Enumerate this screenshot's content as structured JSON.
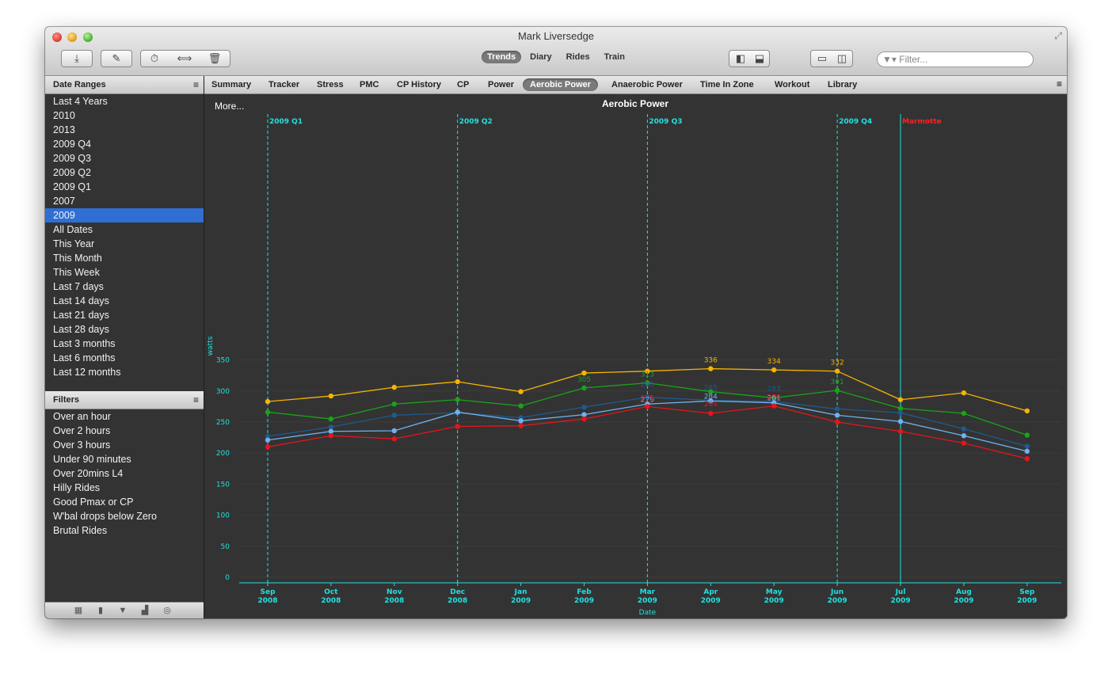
{
  "window": {
    "title": "Mark Liversedge"
  },
  "toolbar": {
    "nav": [
      "Trends",
      "Diary",
      "Rides",
      "Train"
    ],
    "active_nav": "Trends",
    "filter_placeholder": "Filter...",
    "icons": [
      "download-icon",
      "edit-icon",
      "stopwatch-icon",
      "split-icon",
      "trash-icon",
      "sidebar-icon",
      "bottom-panel-icon",
      "single-view-icon",
      "tiled-view-icon"
    ]
  },
  "sidebar": {
    "date_ranges_title": "Date Ranges",
    "date_ranges": [
      "Last 4 Years",
      "2010",
      "2013",
      "2009 Q4",
      "2009 Q3",
      "2009 Q2",
      "2009 Q1",
      "2007",
      "2009",
      "All Dates",
      "This Year",
      "This Month",
      "This Week",
      "Last 7 days",
      "Last 14 days",
      "Last 21 days",
      "Last 28 days",
      "Last 3 months",
      "Last 6 months",
      "Last 12 months"
    ],
    "selected_range": "2009",
    "filters_title": "Filters",
    "filters": [
      "Over an hour",
      "Over 2 hours",
      "Over 3 hours",
      "Under 90 minutes",
      "Over 20mins L4",
      "Hilly Rides",
      "Good Pmax or CP",
      "W'bal drops below Zero",
      "Brutal Rides"
    ]
  },
  "tabs": [
    "Summary",
    "Tracker",
    "Stress",
    "PMC",
    "CP History",
    "CP",
    "Power",
    "Aerobic Power",
    "Anaerobic Power",
    "Time In Zone",
    "Workout",
    "Library"
  ],
  "active_tab": "Aerobic Power",
  "more_label": "More...",
  "chart_data": {
    "type": "line",
    "title": "Aerobic Power",
    "xlabel": "Date",
    "ylabel": "watts",
    "ylim": [
      0,
      370
    ],
    "yticks": [
      0,
      50,
      100,
      150,
      200,
      250,
      300,
      350
    ],
    "categories": [
      [
        "Sep",
        "2008"
      ],
      [
        "Oct",
        "2008"
      ],
      [
        "Nov",
        "2008"
      ],
      [
        "Dec",
        "2008"
      ],
      [
        "Jan",
        "2009"
      ],
      [
        "Feb",
        "2009"
      ],
      [
        "Mar",
        "2009"
      ],
      [
        "Apr",
        "2009"
      ],
      [
        "May",
        "2009"
      ],
      [
        "Jun",
        "2009"
      ],
      [
        "Jul",
        "2009"
      ],
      [
        "Aug",
        "2009"
      ],
      [
        "Sep",
        "2009"
      ]
    ],
    "series": [
      {
        "color": "#f5b400",
        "values": [
          283,
          292,
          306,
          315,
          299,
          329,
          332,
          336,
          334,
          332,
          286,
          297,
          268
        ]
      },
      {
        "color": "#1aa31a",
        "values": [
          266,
          255,
          279,
          286,
          276,
          305,
          313,
          299,
          289,
          301,
          272,
          264,
          229
        ]
      },
      {
        "color": "#1f5a8c",
        "values": [
          227,
          242,
          261,
          265,
          257,
          274,
          290,
          285,
          283,
          271,
          265,
          239,
          211
        ]
      },
      {
        "color": "#6fb1f0",
        "values": [
          221,
          235,
          236,
          266,
          252,
          262,
          279,
          284,
          281,
          261,
          251,
          228,
          203
        ]
      },
      {
        "color": "#e8141c",
        "values": [
          210,
          228,
          223,
          243,
          244,
          255,
          275,
          264,
          276,
          250,
          235,
          216,
          191
        ]
      }
    ],
    "point_labels": [
      {
        "series": 0,
        "index": 7,
        "text": "336"
      },
      {
        "series": 0,
        "index": 8,
        "text": "334"
      },
      {
        "series": 0,
        "index": 9,
        "text": "332"
      },
      {
        "series": 1,
        "index": 5,
        "text": "305"
      },
      {
        "series": 1,
        "index": 6,
        "text": "313"
      },
      {
        "series": 1,
        "index": 9,
        "text": "301"
      },
      {
        "series": 2,
        "index": 6,
        "text": "290"
      },
      {
        "series": 2,
        "index": 7,
        "text": "285"
      },
      {
        "series": 2,
        "index": 8,
        "text": "283"
      },
      {
        "series": 3,
        "index": 6,
        "text": "279"
      },
      {
        "series": 3,
        "index": 7,
        "text": "284"
      },
      {
        "series": 3,
        "index": 8,
        "text": "281"
      },
      {
        "series": 4,
        "index": 6,
        "text": "275"
      },
      {
        "series": 4,
        "index": 7,
        "text": "264"
      },
      {
        "series": 4,
        "index": 8,
        "text": "276"
      }
    ],
    "markers": [
      {
        "label": "2009 Q1",
        "index": 0,
        "style": "dashed",
        "color": "#22e0e0"
      },
      {
        "label": "2009 Q2",
        "index": 3,
        "style": "dashed",
        "color": "#22e0e0"
      },
      {
        "label": "2009 Q3",
        "index": 6,
        "style": "dashed",
        "color": "#22e0e0"
      },
      {
        "label": "2009 Q4",
        "index": 9,
        "style": "dashed",
        "color": "#22e0e0"
      },
      {
        "label": "Marmotte",
        "index": 10,
        "style": "solid",
        "color": "#22e0e0",
        "label_color": "#ff2020"
      }
    ],
    "axis_color": "#22e0e0",
    "grid": true
  }
}
